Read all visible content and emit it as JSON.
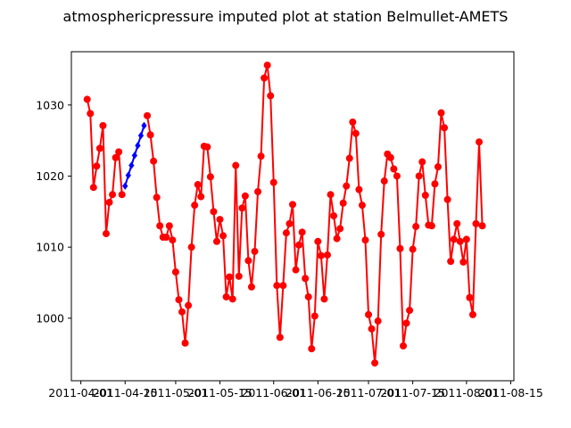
{
  "chart_data": {
    "type": "line",
    "title": "atmosphericpressure imputed plot at station Belmullet-AMETS",
    "xlabel": "",
    "ylabel": "",
    "x_ticks": [
      "2011-04-01",
      "2011-04-15",
      "2011-05-01",
      "2011-05-15",
      "2011-06-01",
      "2011-06-15",
      "2011-07-01",
      "2011-07-15",
      "2011-08-01",
      "2011-08-15"
    ],
    "y_ticks": [
      1000,
      1010,
      1020,
      1030
    ],
    "xlim": [
      "2011-03-29",
      "2011-08-16"
    ],
    "ylim": [
      991.2,
      1037.5
    ],
    "grid": false,
    "series": [
      {
        "color": "#ff0000",
        "marker": "circle",
        "points": [
          [
            "2011-04-03",
            1030.8
          ],
          [
            "2011-04-04",
            1028.8
          ],
          [
            "2011-04-05",
            1018.4
          ],
          [
            "2011-04-06",
            1021.4
          ],
          [
            "2011-04-07",
            1023.9
          ],
          [
            "2011-04-08",
            1027.1
          ],
          [
            "2011-04-09",
            1011.9
          ],
          [
            "2011-04-10",
            1016.3
          ],
          [
            "2011-04-11",
            1017.4
          ],
          [
            "2011-04-12",
            1022.6
          ],
          [
            "2011-04-13",
            1023.4
          ],
          [
            "2011-04-14",
            1017.4
          ]
        ]
      },
      {
        "color": "#0000ff",
        "marker": "diamond",
        "points": [
          [
            "2011-04-15",
            1018.6
          ],
          [
            "2011-04-16",
            1020.1
          ],
          [
            "2011-04-17",
            1021.5
          ],
          [
            "2011-04-18",
            1022.9
          ],
          [
            "2011-04-19",
            1024.3
          ],
          [
            "2011-04-20",
            1025.7
          ],
          [
            "2011-04-21",
            1027.1
          ]
        ]
      },
      {
        "color": "#ff0000",
        "marker": "circle",
        "points": [
          [
            "2011-04-22",
            1028.5
          ],
          [
            "2011-04-23",
            1025.8
          ],
          [
            "2011-04-24",
            1022.1
          ],
          [
            "2011-04-25",
            1017.0
          ],
          [
            "2011-04-26",
            1013.0
          ],
          [
            "2011-04-27",
            1011.4
          ],
          [
            "2011-04-28",
            1011.4
          ],
          [
            "2011-04-29",
            1013.0
          ],
          [
            "2011-04-30",
            1011.0
          ],
          [
            "2011-05-01",
            1006.5
          ],
          [
            "2011-05-02",
            1002.6
          ],
          [
            "2011-05-03",
            1000.9
          ],
          [
            "2011-05-04",
            996.5
          ],
          [
            "2011-05-05",
            1001.8
          ],
          [
            "2011-05-06",
            1010.0
          ],
          [
            "2011-05-07",
            1015.9
          ],
          [
            "2011-05-08",
            1018.8
          ],
          [
            "2011-05-09",
            1017.1
          ],
          [
            "2011-05-10",
            1024.2
          ],
          [
            "2011-05-11",
            1024.1
          ],
          [
            "2011-05-12",
            1019.9
          ],
          [
            "2011-05-13",
            1015.0
          ],
          [
            "2011-05-14",
            1010.8
          ],
          [
            "2011-05-15",
            1013.9
          ],
          [
            "2011-05-16",
            1011.6
          ],
          [
            "2011-05-17",
            1003.0
          ],
          [
            "2011-05-18",
            1005.8
          ],
          [
            "2011-05-19",
            1002.7
          ],
          [
            "2011-05-20",
            1021.5
          ],
          [
            "2011-05-21",
            1005.9
          ],
          [
            "2011-05-22",
            1015.5
          ],
          [
            "2011-05-23",
            1017.2
          ],
          [
            "2011-05-24",
            1008.1
          ],
          [
            "2011-05-25",
            1004.4
          ],
          [
            "2011-05-26",
            1009.4
          ],
          [
            "2011-05-27",
            1017.8
          ],
          [
            "2011-05-28",
            1022.8
          ],
          [
            "2011-05-29",
            1033.8
          ],
          [
            "2011-05-30",
            1035.6
          ],
          [
            "2011-05-31",
            1031.3
          ],
          [
            "2011-06-01",
            1019.1
          ],
          [
            "2011-06-02",
            1004.6
          ],
          [
            "2011-06-03",
            997.3
          ],
          [
            "2011-06-04",
            1004.6
          ],
          [
            "2011-06-05",
            1012.0
          ],
          [
            "2011-06-06",
            1013.3
          ],
          [
            "2011-06-07",
            1016.0
          ],
          [
            "2011-06-08",
            1006.8
          ],
          [
            "2011-06-09",
            1010.3
          ],
          [
            "2011-06-10",
            1012.1
          ],
          [
            "2011-06-11",
            1005.6
          ],
          [
            "2011-06-12",
            1003.0
          ],
          [
            "2011-06-13",
            995.7
          ],
          [
            "2011-06-14",
            1000.3
          ],
          [
            "2011-06-15",
            1010.8
          ],
          [
            "2011-06-16",
            1008.8
          ],
          [
            "2011-06-17",
            1002.7
          ],
          [
            "2011-06-18",
            1008.9
          ],
          [
            "2011-06-19",
            1017.4
          ],
          [
            "2011-06-20",
            1014.4
          ],
          [
            "2011-06-21",
            1011.2
          ],
          [
            "2011-06-22",
            1012.6
          ],
          [
            "2011-06-23",
            1016.2
          ],
          [
            "2011-06-24",
            1018.6
          ],
          [
            "2011-06-25",
            1022.5
          ],
          [
            "2011-06-26",
            1027.6
          ],
          [
            "2011-06-27",
            1026.0
          ],
          [
            "2011-06-28",
            1018.1
          ],
          [
            "2011-06-29",
            1015.9
          ],
          [
            "2011-06-30",
            1011.0
          ],
          [
            "2011-07-01",
            1000.5
          ],
          [
            "2011-07-02",
            998.5
          ],
          [
            "2011-07-03",
            993.7
          ],
          [
            "2011-07-04",
            999.6
          ],
          [
            "2011-07-05",
            1011.8
          ],
          [
            "2011-07-06",
            1019.3
          ],
          [
            "2011-07-07",
            1023.1
          ],
          [
            "2011-07-08",
            1022.6
          ],
          [
            "2011-07-09",
            1021.0
          ],
          [
            "2011-07-10",
            1020.0
          ],
          [
            "2011-07-11",
            1009.8
          ],
          [
            "2011-07-12",
            996.1
          ],
          [
            "2011-07-13",
            999.3
          ],
          [
            "2011-07-14",
            1001.1
          ],
          [
            "2011-07-15",
            1009.7
          ],
          [
            "2011-07-16",
            1012.9
          ],
          [
            "2011-07-17",
            1020.0
          ],
          [
            "2011-07-18",
            1022.0
          ],
          [
            "2011-07-19",
            1017.3
          ],
          [
            "2011-07-20",
            1013.1
          ],
          [
            "2011-07-21",
            1013.0
          ],
          [
            "2011-07-22",
            1018.9
          ],
          [
            "2011-07-23",
            1021.3
          ],
          [
            "2011-07-24",
            1028.9
          ],
          [
            "2011-07-25",
            1026.8
          ],
          [
            "2011-07-26",
            1016.7
          ],
          [
            "2011-07-27",
            1008.0
          ],
          [
            "2011-07-28",
            1011.1
          ],
          [
            "2011-07-29",
            1013.3
          ],
          [
            "2011-07-30",
            1010.8
          ],
          [
            "2011-07-31",
            1007.9
          ],
          [
            "2011-08-01",
            1011.1
          ],
          [
            "2011-08-02",
            1002.9
          ],
          [
            "2011-08-03",
            1000.5
          ],
          [
            "2011-08-04",
            1013.3
          ],
          [
            "2011-08-05",
            1024.8
          ],
          [
            "2011-08-06",
            1013.0
          ]
        ]
      }
    ]
  }
}
